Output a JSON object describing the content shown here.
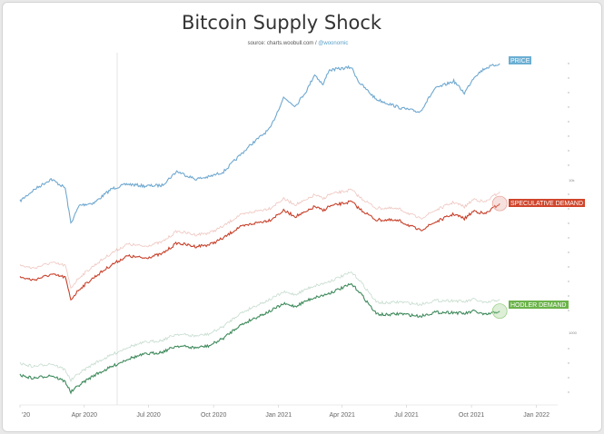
{
  "title": "Bitcoin Supply Shock",
  "subtitle_source": "source: charts.woobull.com / ",
  "subtitle_handle": "@woonomic",
  "chart_data": {
    "type": "line",
    "title": "Bitcoin Supply Shock",
    "x_tick_labels": [
      "'20",
      "Apr 2020",
      "Jul 2020",
      "Oct 2020",
      "Jan 2021",
      "Apr 2021",
      "Jul 2021",
      "Oct 2021",
      "Jan 2022"
    ],
    "xlim": [
      "2020-01-01",
      "2022-01-31"
    ],
    "y_tick_labels": [
      "10k",
      "1000"
    ],
    "x": [
      "2020-01-01",
      "2020-01-20",
      "2020-02-14",
      "2020-03-05",
      "2020-03-13",
      "2020-03-25",
      "2020-04-15",
      "2020-05-10",
      "2020-06-01",
      "2020-06-25",
      "2020-07-20",
      "2020-08-10",
      "2020-09-05",
      "2020-09-25",
      "2020-10-15",
      "2020-11-05",
      "2020-11-25",
      "2020-12-20",
      "2021-01-08",
      "2021-01-25",
      "2021-02-10",
      "2021-02-21",
      "2021-03-05",
      "2021-03-13",
      "2021-04-14",
      "2021-04-25",
      "2021-05-19",
      "2021-06-01",
      "2021-06-22",
      "2021-07-20",
      "2021-08-10",
      "2021-09-06",
      "2021-09-21",
      "2021-10-05",
      "2021-10-20",
      "2021-11-10"
    ],
    "series": [
      {
        "name": "PRICE",
        "color": "#6fa8d0",
        "values": [
          7200,
          8600,
          10300,
          8900,
          5000,
          6700,
          7000,
          8800,
          9500,
          9200,
          9300,
          11700,
          10300,
          10700,
          11600,
          14800,
          18500,
          23500,
          39000,
          34000,
          44000,
          57000,
          48000,
          61000,
          64000,
          50000,
          38000,
          36000,
          33000,
          30800,
          45000,
          51000,
          42000,
          55000,
          63000,
          68000
        ]
      },
      {
        "name": "SPECULATIVE DEMAND",
        "color": "#c8402a",
        "values": [
          2.6,
          2.5,
          2.7,
          2.6,
          1.9,
          2.2,
          2.6,
          3.1,
          3.5,
          3.4,
          3.6,
          4.2,
          4.0,
          4.1,
          4.5,
          5.2,
          5.5,
          5.8,
          6.6,
          6.1,
          6.5,
          7.0,
          6.6,
          7.0,
          7.5,
          6.8,
          5.8,
          5.8,
          5.7,
          5.0,
          5.6,
          6.3,
          5.9,
          6.6,
          6.3,
          7.3
        ]
      },
      {
        "name": "HODLER DEMAND",
        "color": "#3f8a5c",
        "values": [
          1.2,
          1.15,
          1.2,
          1.1,
          0.95,
          1.05,
          1.2,
          1.35,
          1.5,
          1.6,
          1.65,
          1.8,
          1.75,
          1.8,
          2.0,
          2.35,
          2.6,
          2.9,
          3.2,
          3.1,
          3.35,
          3.5,
          3.6,
          3.7,
          4.2,
          3.8,
          2.8,
          2.75,
          2.8,
          2.7,
          2.85,
          2.85,
          2.8,
          2.9,
          2.75,
          2.9
        ]
      }
    ],
    "legend_placement": "series labels at right end of each line",
    "grid": false
  }
}
